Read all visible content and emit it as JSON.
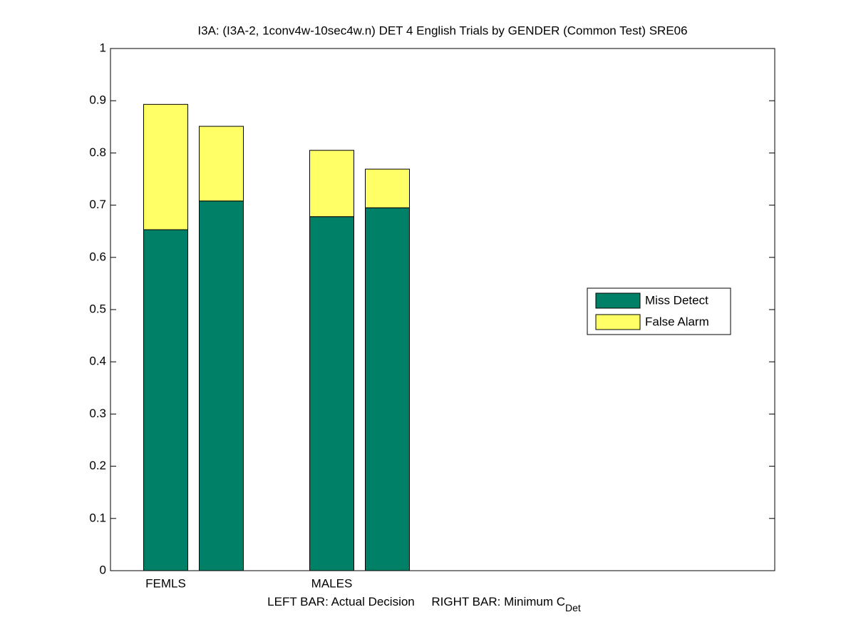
{
  "chart_data": {
    "type": "stacked-grouped-bar",
    "title": "I3A: (I3A-2, 1conv4w-10sec4w.n) DET 4 English Trials by GENDER (Common Test) SRE06",
    "xlabel": "LEFT BAR: Actual Decision     RIGHT BAR: Minimum C",
    "xlabel_subscript": "Det",
    "categories": [
      "FEMLS",
      "MALES"
    ],
    "series": [
      {
        "name": "Miss Detect",
        "color": "#008066",
        "values": [
          [
            0.653,
            0.708
          ],
          [
            0.678,
            0.695
          ]
        ]
      },
      {
        "name": "False Alarm",
        "color": "#ffff66",
        "values": [
          [
            0.24,
            0.143
          ],
          [
            0.127,
            0.074
          ]
        ]
      }
    ],
    "ylim": [
      0,
      1
    ],
    "yticks": [
      0,
      0.1,
      0.2,
      0.3,
      0.4,
      0.5,
      0.6,
      0.7,
      0.8,
      0.9,
      1
    ],
    "legend": "right"
  }
}
